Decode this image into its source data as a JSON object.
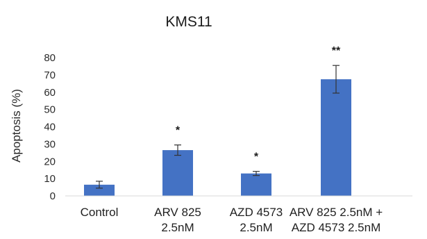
{
  "chart_data": {
    "type": "bar",
    "title": "KMS11",
    "ylabel": "Apoptosis (%)",
    "xlabel": "",
    "ylim": [
      0,
      80
    ],
    "yticks": [
      0,
      10,
      20,
      30,
      40,
      50,
      60,
      70,
      80
    ],
    "grid": false,
    "bar_color": "#4472c4",
    "categories": [
      [
        "Control"
      ],
      [
        "ARV 825",
        "2.5nM"
      ],
      [
        "AZD 4573",
        "2.5nM"
      ],
      [
        "ARV 825 2.5nM +",
        "AZD 4573 2.5nM"
      ]
    ],
    "values": [
      6.5,
      26.5,
      13,
      67.5
    ],
    "error": [
      2,
      3,
      1.2,
      8
    ],
    "significance": [
      "",
      "*",
      "*",
      "**"
    ]
  }
}
